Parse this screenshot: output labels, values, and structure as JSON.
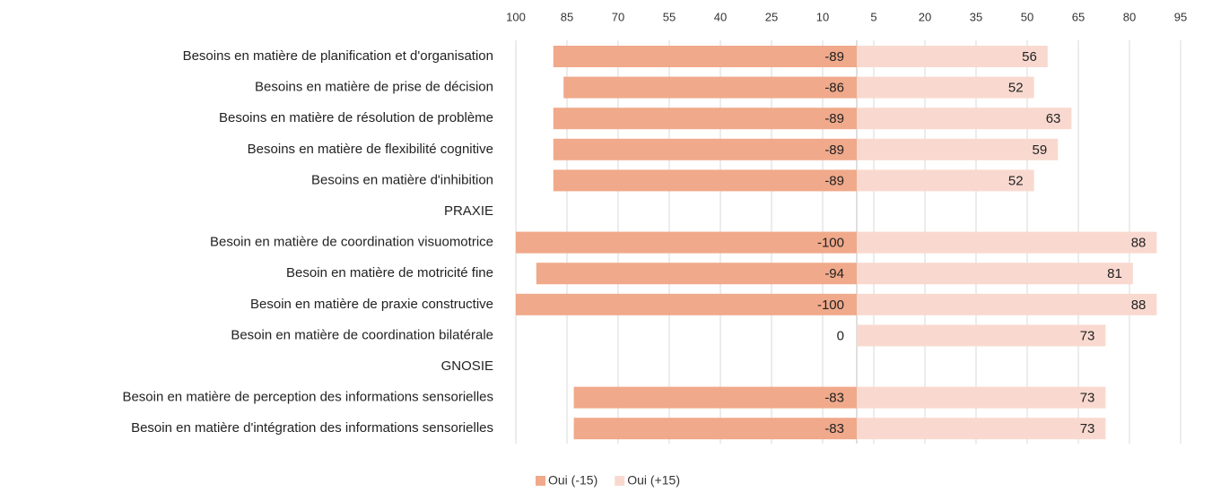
{
  "chart_data": {
    "type": "bar",
    "orientation": "horizontal",
    "categories": [
      "Besoins en matière de planification et d'organisation",
      "Besoins en matière de prise de décision",
      "Besoins en matière de résolution de problème",
      "Besoins en matière de flexibilité cognitive",
      "Besoins en matière d'inhibition",
      "PRAXIE",
      "Besoin en matière de coordination visuomotrice",
      "Besoin en matière de motricité fine",
      "Besoin en matière de praxie constructive",
      "Besoin en matière de coordination bilatérale",
      "GNOSIE",
      "Besoin en matière de perception des informations sensorielles",
      "Besoin en matière d'intégration des informations sensorielles"
    ],
    "series": [
      {
        "name": "Oui (-15)",
        "color": "#f0a98a",
        "values": [
          -89,
          -86,
          -89,
          -89,
          -89,
          null,
          -100,
          -94,
          -100,
          0,
          null,
          -83,
          -83
        ]
      },
      {
        "name": "Oui (+15)",
        "color": "#f9d9cf",
        "values": [
          56,
          52,
          63,
          59,
          52,
          null,
          88,
          81,
          88,
          73,
          null,
          73,
          73
        ]
      }
    ],
    "xlim": [
      -100,
      100
    ],
    "xticks": [
      {
        "value": -100,
        "label": "100"
      },
      {
        "value": -85,
        "label": "85"
      },
      {
        "value": -70,
        "label": "70"
      },
      {
        "value": -55,
        "label": "55"
      },
      {
        "value": -40,
        "label": "40"
      },
      {
        "value": -25,
        "label": "25"
      },
      {
        "value": -10,
        "label": "10"
      },
      5,
      20,
      35,
      50,
      65,
      80,
      95
    ],
    "grid": true,
    "legend": "bottom"
  }
}
